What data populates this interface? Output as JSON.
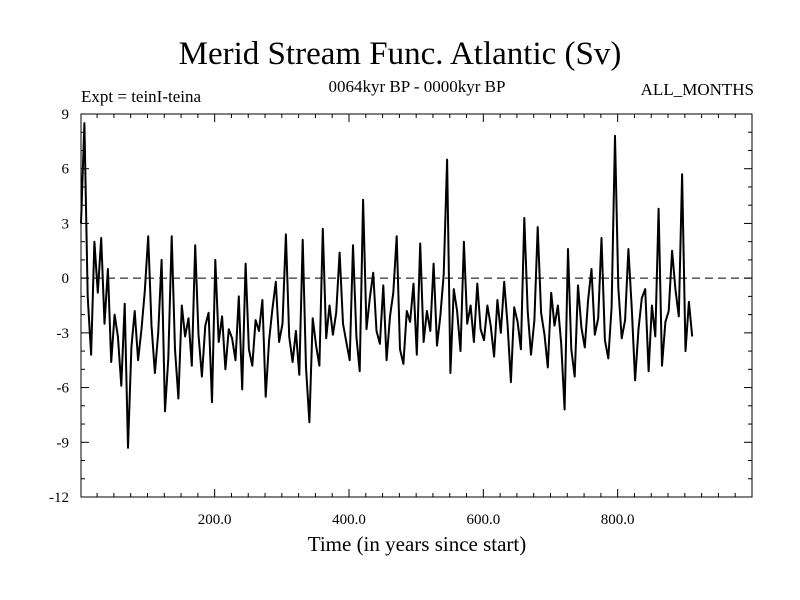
{
  "chart_data": {
    "type": "line",
    "title": "Merid Stream Func. Atlantic (Sv)",
    "subtitle": "0064kyr BP - 0000kyr BP",
    "top_left_label": "Expt = teinI-teina",
    "top_right_label": "ALL_MONTHS",
    "xlabel": "Time (in years since start)",
    "ylabel": "",
    "xlim": [
      1,
      1000
    ],
    "ylim": [
      -12,
      9
    ],
    "x_ticks": [
      200,
      400,
      600,
      800
    ],
    "x_tick_labels": [
      "200.0",
      "400.0",
      "600.0",
      "800.0"
    ],
    "y_ticks": [
      9,
      6,
      3,
      0,
      -3,
      -6,
      -9,
      -12
    ],
    "y_tick_labels": [
      "9",
      "6",
      "3",
      "0",
      "-3",
      "-6",
      "-9",
      "-12"
    ],
    "reference_line": {
      "y": 0,
      "style": "dashed"
    },
    "series": [
      {
        "name": "Merid Stream Func. Atlantic",
        "x_start": 1,
        "x_step": 5,
        "values": [
          3.0,
          8.5,
          -1.0,
          -4.2,
          2.0,
          -0.8,
          2.2,
          -2.5,
          0.5,
          -4.6,
          -2.0,
          -3.2,
          -5.9,
          -1.4,
          -9.3,
          -3.8,
          -1.8,
          -4.5,
          -2.8,
          -0.7,
          2.3,
          -2.6,
          -5.2,
          -3.0,
          1.0,
          -7.3,
          -4.4,
          2.3,
          -3.9,
          -6.6,
          -1.5,
          -3.2,
          -2.2,
          -4.8,
          1.8,
          -3.1,
          -5.4,
          -2.6,
          -1.9,
          -6.8,
          1.0,
          -3.5,
          -2.1,
          -5.0,
          -2.8,
          -3.3,
          -4.5,
          -1.0,
          -6.1,
          0.8,
          -3.9,
          -4.8,
          -2.3,
          -2.9,
          -1.2,
          -6.5,
          -3.4,
          -1.7,
          -0.2,
          -3.5,
          -2.5,
          2.4,
          -3.2,
          -4.6,
          -2.9,
          -5.3,
          2.1,
          -4.9,
          -7.9,
          -2.2,
          -3.7,
          -4.8,
          2.7,
          -3.3,
          -1.5,
          -3.1,
          -1.9,
          1.4,
          -2.5,
          -3.5,
          -4.5,
          1.8,
          -3.2,
          -5.1,
          4.3,
          -2.8,
          -1.1,
          0.3,
          -2.9,
          -3.6,
          -0.4,
          -4.5,
          -2.1,
          -0.8,
          2.3,
          -3.9,
          -4.7,
          -1.8,
          -2.4,
          -0.3,
          -4.2,
          1.9,
          -3.5,
          -1.8,
          -2.9,
          0.8,
          -3.7,
          -2.1,
          0.2,
          6.5,
          -5.2,
          -0.6,
          -1.8,
          -4.0,
          2.0,
          -2.5,
          -1.5,
          -3.5,
          -0.3,
          -2.8,
          -3.4,
          -1.5,
          -2.6,
          -4.3,
          -1.2,
          -3.0,
          -0.2,
          -2.5,
          -5.7,
          -1.6,
          -2.4,
          -3.9,
          3.3,
          -1.8,
          -4.2,
          -2.3,
          2.8,
          -1.9,
          -3.1,
          -4.9,
          -0.8,
          -2.6,
          -1.5,
          -3.6,
          -7.2,
          1.6,
          -3.9,
          -5.4,
          -0.4,
          -2.7,
          -3.8,
          -1.2,
          0.5,
          -3.1,
          -2.2,
          2.2,
          -3.4,
          -4.4,
          -1.6,
          7.8,
          -0.5,
          -3.3,
          -2.3,
          1.6,
          -1.7,
          -5.6,
          -2.8,
          -1.1,
          -0.6,
          -5.1,
          -1.5,
          -3.2,
          3.8,
          -4.8,
          -2.4,
          -1.8,
          1.5,
          -0.6,
          -2.1,
          5.7,
          -4.0,
          -1.3,
          -3.2
        ]
      }
    ]
  }
}
